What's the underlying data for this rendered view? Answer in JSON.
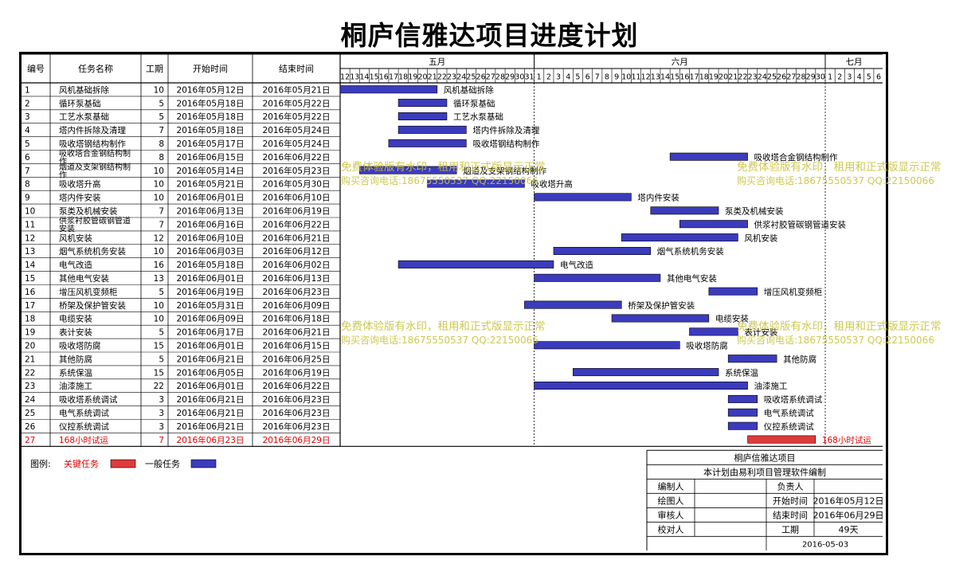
{
  "title": "桐庐信雅达项目进度计划",
  "chart_data": {
    "type": "gantt",
    "headers": [
      "编号",
      "任务名称",
      "工期",
      "开始时间",
      "结束时间"
    ],
    "months": [
      {
        "label": "五月",
        "days": [
          "12",
          "13",
          "14",
          "15",
          "16",
          "17",
          "18",
          "19",
          "20",
          "21",
          "22",
          "23",
          "24",
          "25",
          "26",
          "27",
          "28",
          "29",
          "30",
          "31"
        ]
      },
      {
        "label": "六月",
        "days": [
          "1",
          "2",
          "3",
          "4",
          "5",
          "6",
          "7",
          "8",
          "9",
          "10",
          "11",
          "12",
          "13",
          "14",
          "15",
          "16",
          "17",
          "18",
          "19",
          "20",
          "21",
          "22",
          "23",
          "24",
          "25",
          "26",
          "27",
          "28",
          "29",
          "30"
        ]
      },
      {
        "label": "七月",
        "days": [
          "1",
          "2",
          "3",
          "4",
          "5",
          "6"
        ]
      }
    ],
    "tasks": [
      {
        "id": "1",
        "name": "风机基础拆除",
        "duration": "10",
        "start": "2016年05月12日",
        "end": "2016年05月21日",
        "s": 0,
        "d": 10,
        "critical": false
      },
      {
        "id": "2",
        "name": "循环泵基础",
        "duration": "5",
        "start": "2016年05月18日",
        "end": "2016年05月22日",
        "s": 6,
        "d": 5,
        "critical": false
      },
      {
        "id": "3",
        "name": "工艺水泵基础",
        "duration": "5",
        "start": "2016年05月18日",
        "end": "2016年05月22日",
        "s": 6,
        "d": 5,
        "critical": false
      },
      {
        "id": "4",
        "name": "塔内件拆除及清理",
        "duration": "7",
        "start": "2016年05月18日",
        "end": "2016年05月24日",
        "s": 6,
        "d": 7,
        "critical": false
      },
      {
        "id": "5",
        "name": "吸收塔钢结构制作",
        "duration": "8",
        "start": "2016年05月17日",
        "end": "2016年05月24日",
        "s": 5,
        "d": 8,
        "critical": false
      },
      {
        "id": "6",
        "name": "吸收塔合金钢结构制作",
        "duration": "8",
        "start": "2016年06月15日",
        "end": "2016年06月22日",
        "s": 34,
        "d": 8,
        "critical": false
      },
      {
        "id": "7",
        "name": "烟道及支架钢结构制作",
        "duration": "10",
        "start": "2016年05月14日",
        "end": "2016年05月23日",
        "s": 2,
        "d": 10,
        "critical": false
      },
      {
        "id": "8",
        "name": "吸收塔升高",
        "duration": "10",
        "start": "2016年05月21日",
        "end": "2016年05月30日",
        "s": 9,
        "d": 10,
        "critical": false
      },
      {
        "id": "9",
        "name": "塔内件安装",
        "duration": "10",
        "start": "2016年06月01日",
        "end": "2016年06月10日",
        "s": 20,
        "d": 10,
        "critical": false
      },
      {
        "id": "10",
        "name": "泵类及机械安装",
        "duration": "7",
        "start": "2016年06月13日",
        "end": "2016年06月19日",
        "s": 32,
        "d": 7,
        "critical": false
      },
      {
        "id": "11",
        "name": "供浆衬胶管碳钢管道安装",
        "duration": "7",
        "start": "2016年06月16日",
        "end": "2016年06月22日",
        "s": 35,
        "d": 7,
        "critical": false
      },
      {
        "id": "12",
        "name": "风机安装",
        "duration": "12",
        "start": "2016年06月10日",
        "end": "2016年06月21日",
        "s": 29,
        "d": 12,
        "critical": false
      },
      {
        "id": "13",
        "name": "烟气系统机务安装",
        "duration": "10",
        "start": "2016年06月03日",
        "end": "2016年06月12日",
        "s": 22,
        "d": 10,
        "critical": false
      },
      {
        "id": "14",
        "name": "电气改造",
        "duration": "16",
        "start": "2016年05月18日",
        "end": "2016年06月02日",
        "s": 6,
        "d": 16,
        "critical": false
      },
      {
        "id": "15",
        "name": "其他电气安装",
        "duration": "13",
        "start": "2016年06月01日",
        "end": "2016年06月13日",
        "s": 20,
        "d": 13,
        "critical": false
      },
      {
        "id": "16",
        "name": "增压风机变频柜",
        "duration": "5",
        "start": "2016年06月19日",
        "end": "2016年06月23日",
        "s": 38,
        "d": 5,
        "critical": false
      },
      {
        "id": "17",
        "name": "桥架及保护管安装",
        "duration": "10",
        "start": "2016年05月31日",
        "end": "2016年06月09日",
        "s": 19,
        "d": 10,
        "critical": false
      },
      {
        "id": "18",
        "name": "电缆安装",
        "duration": "10",
        "start": "2016年06月09日",
        "end": "2016年06月18日",
        "s": 28,
        "d": 10,
        "critical": false
      },
      {
        "id": "19",
        "name": "表计安装",
        "duration": "5",
        "start": "2016年06月17日",
        "end": "2016年06月21日",
        "s": 36,
        "d": 5,
        "critical": false
      },
      {
        "id": "20",
        "name": "吸收塔防腐",
        "duration": "15",
        "start": "2016年06月01日",
        "end": "2016年06月15日",
        "s": 20,
        "d": 15,
        "critical": false
      },
      {
        "id": "21",
        "name": "其他防腐",
        "duration": "5",
        "start": "2016年06月21日",
        "end": "2016年06月25日",
        "s": 40,
        "d": 5,
        "critical": false
      },
      {
        "id": "22",
        "name": "系统保温",
        "duration": "15",
        "start": "2016年06月05日",
        "end": "2016年06月19日",
        "s": 24,
        "d": 15,
        "critical": false
      },
      {
        "id": "23",
        "name": "油漆施工",
        "duration": "22",
        "start": "2016年06月01日",
        "end": "2016年06月22日",
        "s": 20,
        "d": 22,
        "critical": false
      },
      {
        "id": "24",
        "name": "吸收塔系统调试",
        "duration": "3",
        "start": "2016年06月21日",
        "end": "2016年06月23日",
        "s": 40,
        "d": 3,
        "critical": false
      },
      {
        "id": "25",
        "name": "电气系统调试",
        "duration": "3",
        "start": "2016年06月21日",
        "end": "2016年06月23日",
        "s": 40,
        "d": 3,
        "critical": false
      },
      {
        "id": "26",
        "name": "仪控系统调试",
        "duration": "3",
        "start": "2016年06月21日",
        "end": "2016年06月23日",
        "s": 40,
        "d": 3,
        "critical": false
      },
      {
        "id": "27",
        "name": "168小时试运",
        "duration": "7",
        "start": "2016年06月23日",
        "end": "2016年06月29日",
        "s": 42,
        "d": 7,
        "critical": true
      }
    ],
    "legend": {
      "label": "图例:",
      "critical": "关键任务",
      "normal": "一般任务"
    },
    "colors": {
      "normal": "#3b3bbd",
      "critical": "#e03a3a",
      "critical_text": "#e00000",
      "watermark": "#c9c23e"
    },
    "watermark": [
      "免费体验版有水印，租用和正式版显示正常",
      "购买咨询电话:18675550537 QQ:22150066"
    ]
  },
  "info_box": {
    "project": "桐庐信雅达项目",
    "software": "本计划由易利项目管理软件编制",
    "rows": [
      [
        "编制人",
        "",
        "负责人",
        ""
      ],
      [
        "绘图人",
        "",
        "开始时间",
        "2016年05月12日"
      ],
      [
        "审核人",
        "",
        "结束时间",
        "2016年06月29日"
      ],
      [
        "校对人",
        "",
        "工期",
        "49天"
      ]
    ],
    "date": "2016-05-03"
  }
}
